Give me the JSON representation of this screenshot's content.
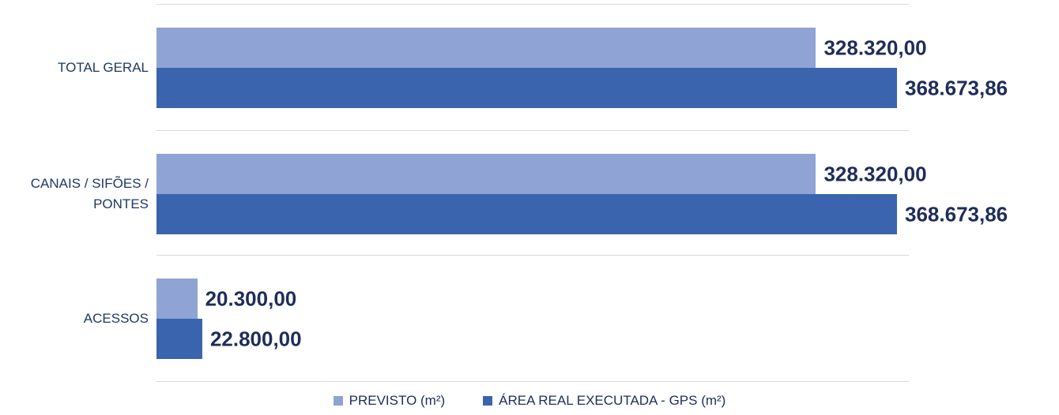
{
  "chart_data": {
    "type": "bar",
    "orientation": "horizontal",
    "categories": [
      "TOTAL GERAL",
      "CANAIS / SIFÕES / PONTES",
      "ACESSOS"
    ],
    "series": [
      {
        "name": "PREVISTO (m²)",
        "color": "#8fa3d4",
        "values": [
          328320,
          328320,
          20300
        ],
        "value_labels": [
          "328.320,00",
          "328.320,00",
          "20.300,00"
        ]
      },
      {
        "name": "ÁREA REAL EXECUTADA - GPS (m²)",
        "color": "#3a64ad",
        "values": [
          368673.86,
          368673.86,
          22800
        ],
        "value_labels": [
          "368.673,86",
          "368.673,86",
          "22.800,00"
        ]
      }
    ]
  }
}
